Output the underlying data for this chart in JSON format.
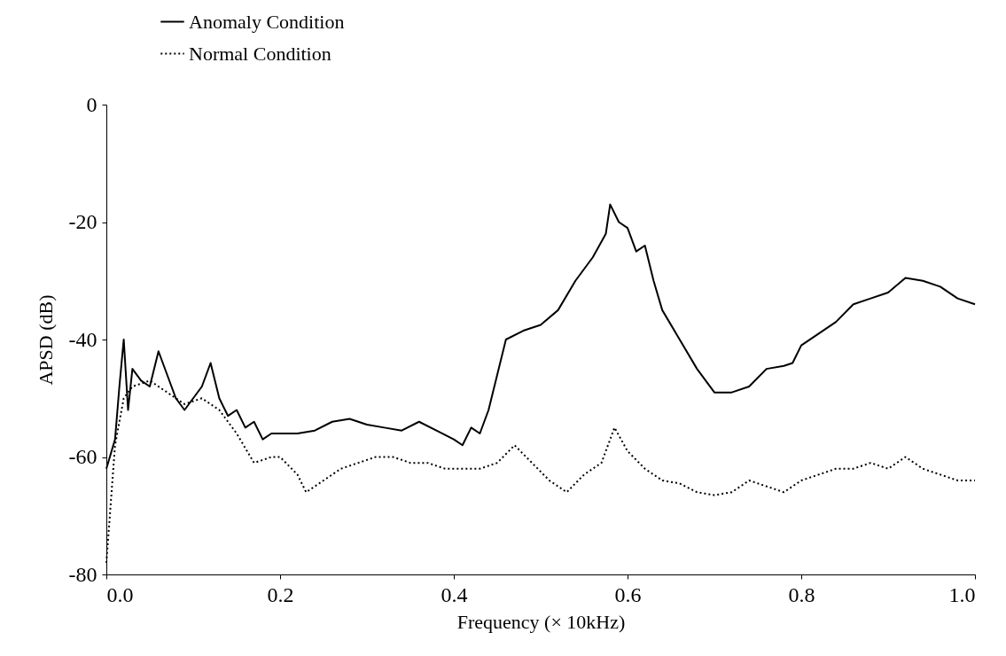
{
  "chart_data": {
    "type": "line",
    "xlabel": "Frequency (× 10kHz)",
    "ylabel": "APSD (dB)",
    "xlim": [
      0,
      1
    ],
    "ylim": [
      -80,
      0
    ],
    "xticks": [
      {
        "value": 0,
        "label": "0.0"
      },
      0.2,
      0.4,
      0.6,
      0.8,
      {
        "value": 1,
        "label": "1.0"
      }
    ],
    "yticks": [
      -80,
      -60,
      -40,
      -20,
      0
    ],
    "legend": "top left",
    "grid": false,
    "series": [
      {
        "name": "Anomaly Condition",
        "color": "#000000",
        "line_style": "solid",
        "x": [
          0,
          0.01,
          0.015,
          0.02,
          0.025,
          0.03,
          0.04,
          0.05,
          0.06,
          0.07,
          0.08,
          0.09,
          0.1,
          0.11,
          0.12,
          0.13,
          0.14,
          0.15,
          0.16,
          0.17,
          0.18,
          0.19,
          0.2,
          0.22,
          0.24,
          0.26,
          0.28,
          0.3,
          0.32,
          0.34,
          0.36,
          0.38,
          0.4,
          0.41,
          0.42,
          0.43,
          0.44,
          0.45,
          0.46,
          0.48,
          0.5,
          0.52,
          0.54,
          0.56,
          0.575,
          0.58,
          0.59,
          0.6,
          0.61,
          0.62,
          0.63,
          0.64,
          0.66,
          0.68,
          0.69,
          0.7,
          0.72,
          0.74,
          0.76,
          0.78,
          0.79,
          0.8,
          0.82,
          0.84,
          0.86,
          0.88,
          0.9,
          0.92,
          0.94,
          0.96,
          0.98,
          1.0
        ],
        "values": [
          -62,
          -57,
          -48,
          -40,
          -52,
          -45,
          -47,
          -48,
          -42,
          -46,
          -50,
          -52,
          -50,
          -48,
          -44,
          -50,
          -53,
          -52,
          -55,
          -54,
          -57,
          -56,
          -56,
          -56,
          -55.5,
          -54,
          -53.5,
          -54.5,
          -55,
          -55.5,
          -54,
          -55.5,
          -57,
          -58,
          -55,
          -56,
          -52,
          -46,
          -40,
          -38.5,
          -37.5,
          -35,
          -30,
          -26,
          -22,
          -17,
          -20,
          -21,
          -25,
          -24,
          -30,
          -35,
          -40,
          -45,
          -47,
          -49,
          -49,
          -48,
          -45,
          -44.5,
          -44,
          -41,
          -39,
          -37,
          -34,
          -33,
          -32,
          -29.5,
          -30,
          -31,
          -33,
          -34
        ]
      },
      {
        "name": "Normal Condition",
        "color": "#000000",
        "line_style": "dotted",
        "x": [
          0,
          0.01,
          0.02,
          0.03,
          0.05,
          0.07,
          0.09,
          0.11,
          0.13,
          0.15,
          0.17,
          0.19,
          0.2,
          0.22,
          0.23,
          0.25,
          0.27,
          0.29,
          0.31,
          0.33,
          0.35,
          0.37,
          0.39,
          0.41,
          0.43,
          0.45,
          0.47,
          0.49,
          0.51,
          0.53,
          0.55,
          0.57,
          0.585,
          0.6,
          0.62,
          0.64,
          0.66,
          0.68,
          0.7,
          0.72,
          0.74,
          0.76,
          0.78,
          0.8,
          0.82,
          0.84,
          0.86,
          0.88,
          0.9,
          0.92,
          0.94,
          0.96,
          0.98,
          1.0
        ],
        "values": [
          -78,
          -58,
          -50,
          -48,
          -47,
          -49,
          -51,
          -50,
          -52,
          -56,
          -61,
          -60,
          -60,
          -63,
          -66,
          -64,
          -62,
          -61,
          -60,
          -60,
          -61,
          -61,
          -62,
          -62,
          -62,
          -61,
          -58,
          -61,
          -64,
          -66,
          -63,
          -61,
          -55,
          -59,
          -62,
          -64,
          -64.5,
          -66,
          -66.5,
          -66,
          -64,
          -65,
          -66,
          -64,
          -63,
          -62,
          -62,
          -61,
          -62,
          -60,
          -62,
          -63,
          -64,
          -64
        ]
      }
    ]
  }
}
